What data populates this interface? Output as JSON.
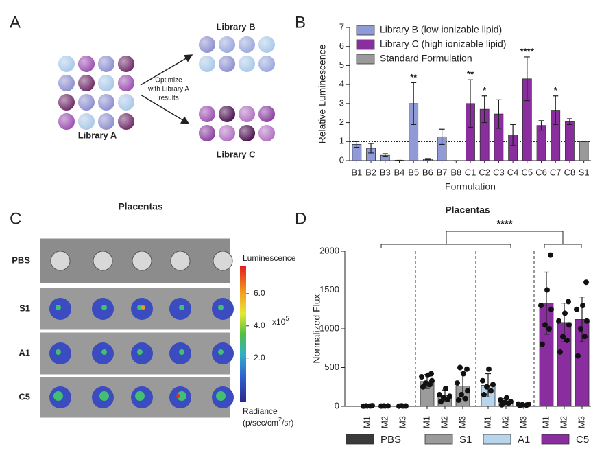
{
  "panel_labels": [
    "A",
    "B",
    "C",
    "D"
  ],
  "diagram": {
    "library_a": "Library A",
    "library_b": "Library B",
    "library_c": "Library C",
    "arrow_label": [
      "Optimize",
      "with Library A",
      "results"
    ]
  },
  "image_panel": {
    "title": "Placentas",
    "rows": [
      "PBS",
      "S1",
      "A1",
      "C5"
    ],
    "colorbar": {
      "label": "Luminescence",
      "clim": [
        -0.7,
        7.7
      ],
      "ticks": [
        {
          "value": 6,
          "label": "6.0"
        },
        {
          "value": 4,
          "label": "4.0"
        },
        {
          "value": 2,
          "label": "2.0"
        }
      ],
      "multiplier": "x10",
      "exponent": "5",
      "units_title": "Radiance",
      "units": [
        "(p/sec/cm",
        "2",
        "/sr)"
      ]
    }
  },
  "chart_data": [
    {
      "type": "bar",
      "categories": [
        "B1",
        "B2",
        "B3",
        "B4",
        "B5",
        "B6",
        "B7",
        "B8",
        "C1",
        "C2",
        "C3",
        "C4",
        "C5",
        "C6",
        "C7",
        "C8",
        "S1"
      ],
      "series": [
        {
          "name": "Library B (low ionizable lipid)",
          "color": "#8f9ad6",
          "values": [
            0.85,
            0.65,
            0.28,
            0.02,
            3.0,
            0.08,
            1.25,
            0,
            null,
            null,
            null,
            null,
            null,
            null,
            null,
            null,
            null
          ],
          "errors": [
            0.15,
            0.25,
            0.08,
            0,
            1.1,
            0.03,
            0.4,
            0,
            null,
            null,
            null,
            null,
            null,
            null,
            null,
            null,
            null
          ]
        },
        {
          "name": "Library C (high ionizable lipid)",
          "color": "#8a2d9e",
          "values": [
            null,
            null,
            null,
            null,
            null,
            null,
            null,
            null,
            3.0,
            2.7,
            2.45,
            1.35,
            4.3,
            1.85,
            2.65,
            2.05,
            null
          ],
          "errors": [
            null,
            null,
            null,
            null,
            null,
            null,
            null,
            null,
            1.25,
            0.7,
            0.75,
            0.55,
            1.15,
            0.25,
            0.75,
            0.15,
            null
          ]
        },
        {
          "name": "Standard Formulation",
          "color": "#9a9a9a",
          "values": [
            null,
            null,
            null,
            null,
            null,
            null,
            null,
            null,
            null,
            null,
            null,
            null,
            null,
            null,
            null,
            null,
            1.0
          ],
          "errors": [
            null,
            null,
            null,
            null,
            null,
            null,
            null,
            null,
            null,
            null,
            null,
            null,
            null,
            null,
            null,
            null,
            0
          ]
        }
      ],
      "ylim": [
        0,
        7
      ],
      "yticks": [
        0,
        1,
        2,
        3,
        4,
        5,
        6,
        7
      ],
      "ylabel": "Relative Luminescence",
      "xlabel": "Formulation",
      "reference_line": 1,
      "annotations": [
        {
          "category": "B5",
          "label": "**"
        },
        {
          "category": "C1",
          "label": "**"
        },
        {
          "category": "C2",
          "label": "*"
        },
        {
          "category": "C5",
          "label": "****"
        },
        {
          "category": "C7",
          "label": "*"
        }
      ],
      "legend": "upper-left"
    },
    {
      "type": "bar",
      "title": "Placentas",
      "categories": [
        "M1",
        "M2",
        "M3",
        "M1",
        "M2",
        "M3",
        "M1",
        "M2",
        "M3",
        "M1",
        "M2",
        "M3"
      ],
      "series": [
        {
          "name": "PBS",
          "color": "#3a3a3a",
          "values": [
            5,
            5,
            5,
            null,
            null,
            null,
            null,
            null,
            null,
            null,
            null,
            null
          ],
          "errors": [
            3,
            3,
            3,
            null,
            null,
            null,
            null,
            null,
            null,
            null,
            null,
            null
          ],
          "points": [
            [
              2,
              4,
              6,
              8
            ],
            [
              3,
              5,
              6
            ],
            [
              2,
              4,
              7
            ],
            null,
            null,
            null,
            null,
            null,
            null,
            null,
            null,
            null
          ]
        },
        {
          "name": "S1",
          "color": "#9b9b9b",
          "values": [
            null,
            null,
            null,
            320,
            140,
            260,
            null,
            null,
            null,
            null,
            null,
            null
          ],
          "errors": [
            null,
            null,
            null,
            90,
            70,
            170,
            null,
            null,
            null,
            null,
            null,
            null
          ],
          "points": [
            null,
            null,
            null,
            [
              250,
              280,
              300,
              330,
              380,
              400,
              420
            ],
            [
              60,
              90,
              110,
              130,
              150,
              230
            ],
            [
              80,
              100,
              150,
              200,
              300,
              420,
              480,
              500
            ],
            null,
            null,
            null,
            null,
            null,
            null
          ]
        },
        {
          "name": "A1",
          "color": "#b9d5ec",
          "values": [
            null,
            null,
            null,
            null,
            null,
            null,
            270,
            60,
            20,
            null,
            null,
            null
          ],
          "errors": [
            null,
            null,
            null,
            null,
            null,
            null,
            150,
            40,
            10,
            null,
            null,
            null
          ],
          "points": [
            null,
            null,
            null,
            null,
            null,
            null,
            [
              150,
              200,
              250,
              280,
              330,
              480
            ],
            [
              20,
              40,
              50,
              60,
              80,
              110
            ],
            [
              10,
              15,
              20,
              25,
              30
            ],
            null,
            null,
            null
          ]
        },
        {
          "name": "C5",
          "color": "#8a2d9e",
          "values": [
            null,
            null,
            null,
            null,
            null,
            null,
            null,
            null,
            null,
            1330,
            1080,
            1120
          ],
          "errors": [
            null,
            null,
            null,
            null,
            null,
            null,
            null,
            null,
            null,
            400,
            250,
            290
          ],
          "points": [
            null,
            null,
            null,
            null,
            null,
            null,
            null,
            null,
            null,
            [
              800,
              1000,
              1050,
              1250,
              1300,
              1500,
              1950
            ],
            [
              700,
              850,
              900,
              1050,
              1100,
              1200,
              1350
            ],
            [
              650,
              900,
              1000,
              1100,
              1250,
              1300,
              1600
            ]
          ]
        }
      ],
      "ylim": [
        0,
        2000
      ],
      "yticks": [
        0,
        500,
        1000,
        1500,
        2000
      ],
      "ylabel": "Normalized Flux",
      "annotations": [
        {
          "label": "****"
        }
      ],
      "legend": "bottom"
    }
  ]
}
